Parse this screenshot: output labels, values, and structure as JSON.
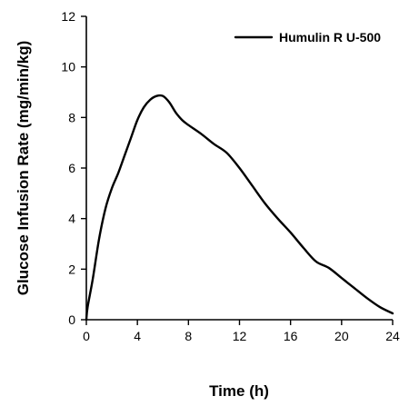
{
  "chart_data": {
    "type": "line",
    "xlabel": "Time (h)",
    "ylabel": "Glucose Infusion Rate (mg/min/kg)",
    "xlim": [
      0,
      24
    ],
    "ylim": [
      0,
      12
    ],
    "x_ticks": [
      0,
      4,
      8,
      12,
      16,
      20,
      24
    ],
    "y_ticks": [
      0,
      2,
      4,
      6,
      8,
      10,
      12
    ],
    "grid": false,
    "legend": "top-right",
    "series": [
      {
        "name": "Humulin R U-500",
        "color": "#000000",
        "x": [
          0,
          0.1,
          0.5,
          1,
          1.5,
          2,
          2.5,
          3,
          3.5,
          4,
          4.5,
          5,
          5.5,
          6,
          6.5,
          7,
          7.5,
          8,
          9,
          10,
          11,
          12,
          13,
          14,
          15,
          16,
          17,
          18,
          19,
          20,
          21,
          22,
          23,
          24
        ],
        "y": [
          0,
          0.5,
          1.6,
          3.2,
          4.4,
          5.2,
          5.8,
          6.5,
          7.2,
          7.9,
          8.4,
          8.7,
          8.85,
          8.85,
          8.6,
          8.2,
          7.9,
          7.7,
          7.35,
          6.95,
          6.6,
          6.0,
          5.3,
          4.6,
          4.0,
          3.45,
          2.85,
          2.3,
          2.05,
          1.65,
          1.25,
          0.85,
          0.5,
          0.25
        ]
      }
    ]
  }
}
